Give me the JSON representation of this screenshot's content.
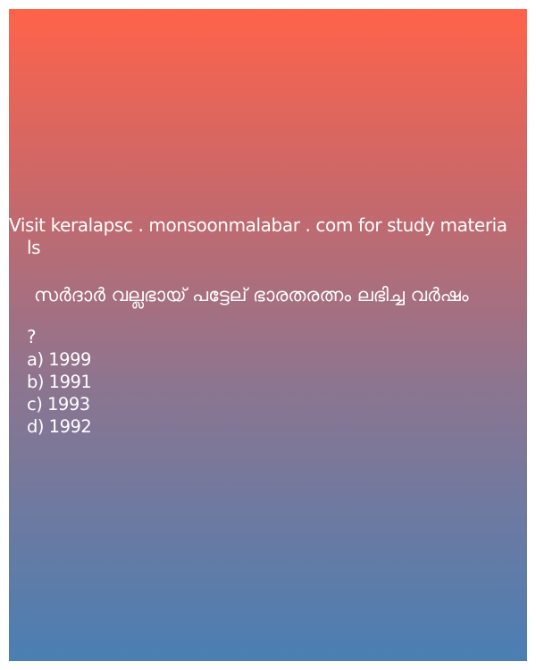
{
  "promo": {
    "line1": "Visit keralapsc . monsoonmalabar . com for study materia",
    "line2": "ls"
  },
  "question": {
    "text": "സർദാർ വല്ലഭായ് പട്ടേല് ഭാരതരത്നം ലഭിച്ച വർഷം",
    "mark": "?"
  },
  "options": [
    {
      "label": "a) 1999"
    },
    {
      "label": "b) 1991"
    },
    {
      "label": "c) 1993"
    },
    {
      "label": "d) 1992"
    }
  ],
  "colors": {
    "gradient_top": "#ff634a",
    "gradient_bottom": "#4a7fb3",
    "text": "#ffffff"
  }
}
